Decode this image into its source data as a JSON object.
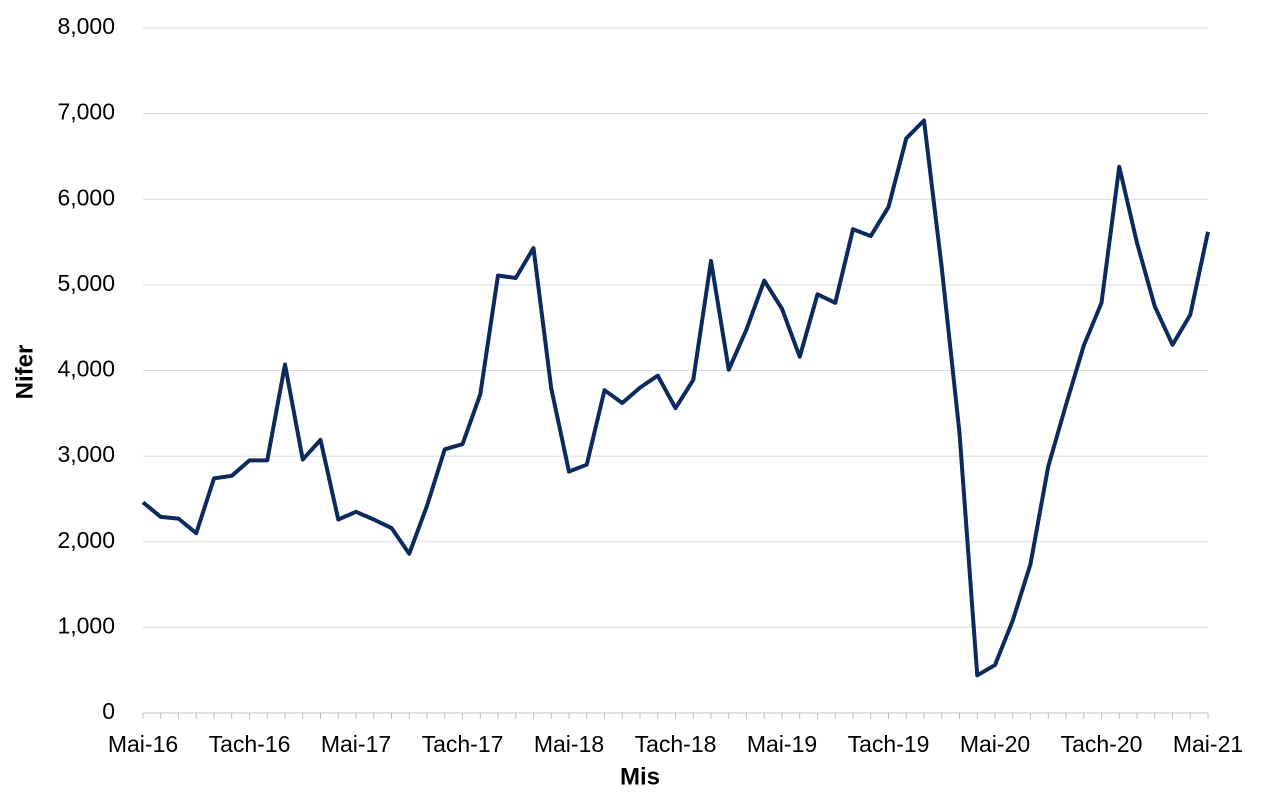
{
  "chart_data": {
    "type": "line",
    "x_label": "Mis",
    "y_label": "Nifer",
    "categories": [
      "Mai-16",
      null,
      null,
      null,
      null,
      null,
      "Tach-16",
      null,
      null,
      null,
      null,
      null,
      "Mai-17",
      null,
      null,
      null,
      null,
      null,
      "Tach-17",
      null,
      null,
      null,
      null,
      null,
      "Mai-18",
      null,
      null,
      null,
      null,
      null,
      "Tach-18",
      null,
      null,
      null,
      null,
      null,
      "Mai-19",
      null,
      null,
      null,
      null,
      null,
      "Tach-19",
      null,
      null,
      null,
      null,
      null,
      "Mai-20",
      null,
      null,
      null,
      null,
      null,
      "Tach-20",
      null,
      null,
      null,
      null,
      null,
      "Mai-21"
    ],
    "series": [
      {
        "color": "#0b2a5e",
        "values": [
          2460,
          2290,
          2270,
          2100,
          2740,
          2770,
          2950,
          2950,
          4070,
          2960,
          3190,
          2260,
          2350,
          2260,
          2160,
          1860,
          2420,
          3080,
          3140,
          3720,
          5110,
          5080,
          5430,
          3790,
          2820,
          2900,
          3770,
          3620,
          3800,
          3940,
          3560,
          3890,
          5280,
          4010,
          4480,
          5050,
          4720,
          4160,
          4890,
          4790,
          5650,
          5570,
          5910,
          6710,
          6920,
          5200,
          3270,
          440,
          560,
          1080,
          1740,
          2880,
          3600,
          4290,
          4790,
          6380,
          5490,
          4750,
          4300,
          4650,
          5620
        ]
      }
    ],
    "ylim": [
      0,
      8000
    ],
    "yticks": [
      0,
      {
        "value": 1000,
        "label": "1,000"
      },
      {
        "value": 2000,
        "label": "2,000"
      },
      {
        "value": 3000,
        "label": "3,000"
      },
      {
        "value": 4000,
        "label": "4,000"
      },
      {
        "value": 5000,
        "label": "5,000"
      },
      {
        "value": 6000,
        "label": "6,000"
      },
      {
        "value": 7000,
        "label": "7,000"
      },
      {
        "value": 8000,
        "label": "8,000"
      }
    ],
    "grid": true
  }
}
